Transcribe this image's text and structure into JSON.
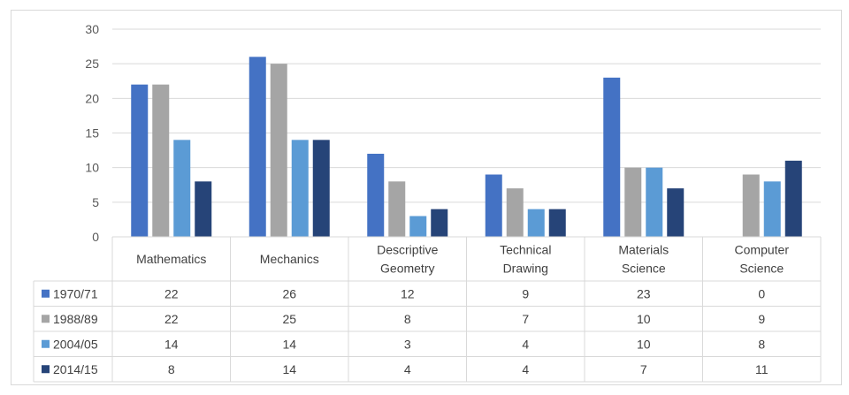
{
  "chart_data": {
    "type": "bar",
    "title": "",
    "xlabel": "",
    "ylabel": "",
    "ylim": [
      0,
      30
    ],
    "yticks": [
      0,
      5,
      10,
      15,
      20,
      25,
      30
    ],
    "grid": true,
    "legend_placement": "data-table-left",
    "categories": [
      [
        "Mathematics"
      ],
      [
        "Mechanics"
      ],
      [
        "Descriptive",
        "Geometry"
      ],
      [
        "Technical",
        "Drawing"
      ],
      [
        "Materials",
        "Science"
      ],
      [
        "Computer",
        "Science"
      ]
    ],
    "series": [
      {
        "name": "1970/71",
        "color": "#4472c4",
        "values": [
          22,
          26,
          12,
          9,
          23,
          0
        ]
      },
      {
        "name": "1988/89",
        "color": "#a5a5a5",
        "values": [
          22,
          25,
          8,
          7,
          10,
          9
        ]
      },
      {
        "name": "2004/05",
        "color": "#5b9bd5",
        "values": [
          14,
          14,
          3,
          4,
          10,
          8
        ]
      },
      {
        "name": "2014/15",
        "color": "#264478",
        "values": [
          8,
          14,
          4,
          4,
          7,
          11
        ]
      }
    ]
  }
}
